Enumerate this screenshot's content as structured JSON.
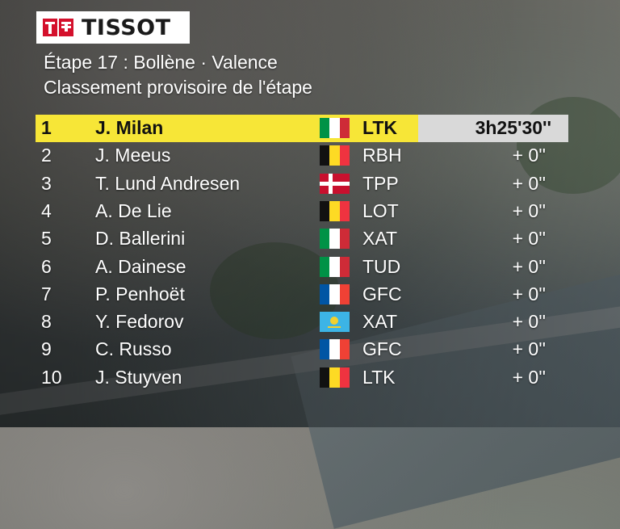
{
  "sponsor": {
    "logo_text": "TISSOT"
  },
  "header": {
    "title": "Étape 17 : Bollène · Valence",
    "subtitle": "Classement provisoire de l'étape"
  },
  "colors": {
    "leader_band": "#f7e637",
    "time_box": "#d9d9d9",
    "logo_red": "#d4102c"
  },
  "rows": [
    {
      "pos": "1",
      "name": "J. Milan",
      "flag": "italy-flag",
      "team": "LTK",
      "time": "3h25'30''"
    },
    {
      "pos": "2",
      "name": "J. Meeus",
      "flag": "belgium-flag",
      "team": "RBH",
      "time": "+  0''"
    },
    {
      "pos": "3",
      "name": "T. Lund Andresen",
      "flag": "denmark-flag",
      "team": "TPP",
      "time": "+  0''"
    },
    {
      "pos": "4",
      "name": "A. De Lie",
      "flag": "belgium-flag",
      "team": "LOT",
      "time": "+  0''"
    },
    {
      "pos": "5",
      "name": "D. Ballerini",
      "flag": "italy-flag",
      "team": "XAT",
      "time": "+  0''"
    },
    {
      "pos": "6",
      "name": "A. Dainese",
      "flag": "italy-flag",
      "team": "TUD",
      "time": "+  0''"
    },
    {
      "pos": "7",
      "name": "P. Penhoët",
      "flag": "france-flag",
      "team": "GFC",
      "time": "+  0''"
    },
    {
      "pos": "8",
      "name": "Y. Fedorov",
      "flag": "kazakhstan-flag",
      "team": "XAT",
      "time": "+  0''"
    },
    {
      "pos": "9",
      "name": "C. Russo",
      "flag": "france-flag",
      "team": "GFC",
      "time": "+  0''"
    },
    {
      "pos": "10",
      "name": "J. Stuyven",
      "flag": "belgium-flag",
      "team": "LTK",
      "time": "+  0''"
    }
  ]
}
